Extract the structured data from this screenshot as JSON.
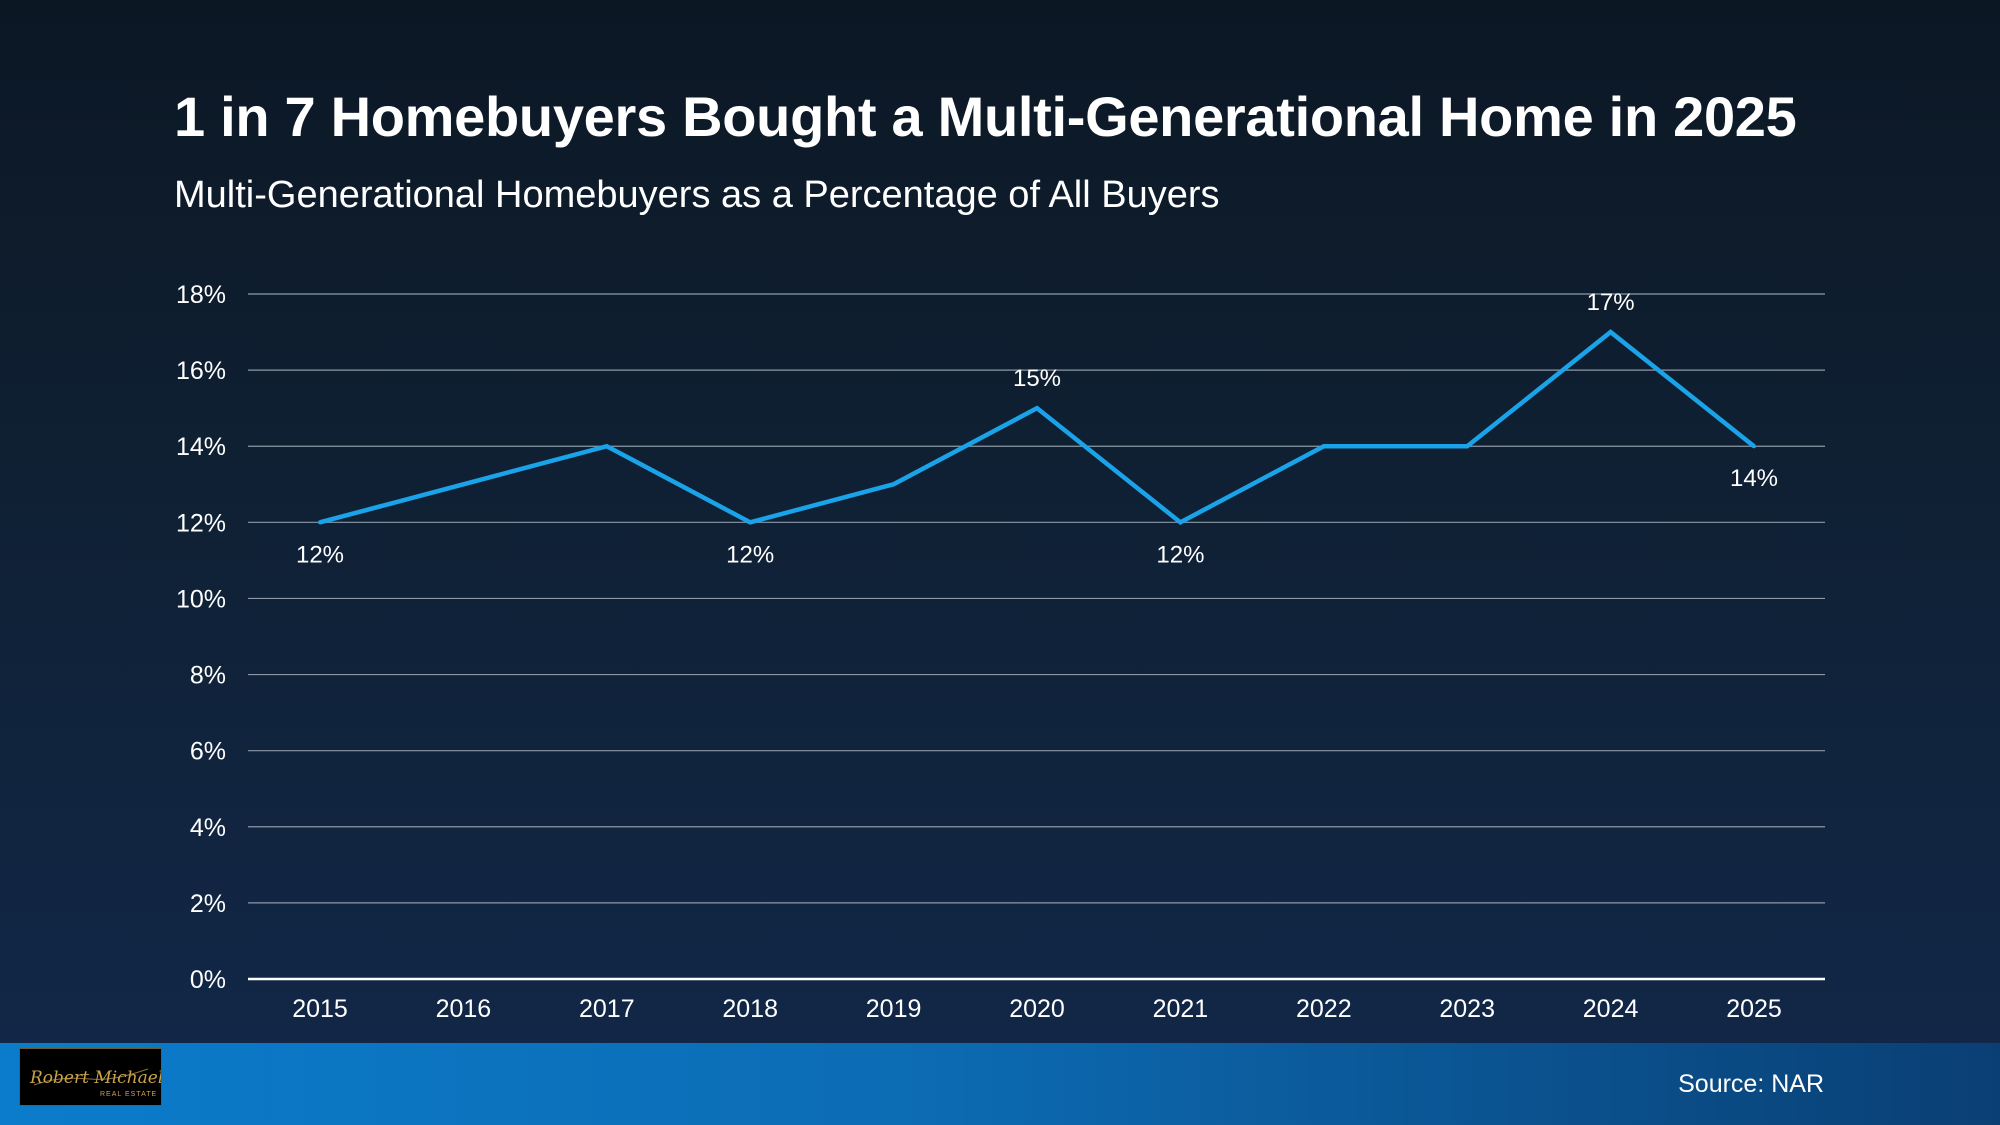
{
  "title": "1 in 7 Homebuyers Bought a Multi-Generational Home in 2025",
  "subtitle": "Multi-Generational Homebuyers as a Percentage of All Buyers",
  "source": "Source: NAR",
  "logo": {
    "name": "Robert Michael",
    "tagline": "REAL ESTATE"
  },
  "colors": {
    "line": "#1aa3e8",
    "grid": "#8c98a6",
    "baseline": "#ffffff",
    "text": "#ffffff",
    "logo_gold": "#c9a449"
  },
  "chart_data": {
    "type": "line",
    "title": "Multi-Generational Homebuyers as a Percentage of All Buyers",
    "xlabel": "",
    "ylabel": "",
    "categories": [
      "2015",
      "2016",
      "2017",
      "2018",
      "2019",
      "2020",
      "2021",
      "2022",
      "2023",
      "2024",
      "2025"
    ],
    "series": [
      {
        "name": "Multi-Generational Homebuyers",
        "values": [
          12,
          13,
          14,
          12,
          13,
          15,
          12,
          14,
          14,
          17,
          14
        ]
      }
    ],
    "ylim": [
      0,
      18
    ],
    "yticks": [
      0,
      2,
      4,
      6,
      8,
      10,
      12,
      14,
      16,
      18
    ],
    "ytick_labels": [
      "0%",
      "2%",
      "4%",
      "6%",
      "8%",
      "10%",
      "12%",
      "14%",
      "16%",
      "18%"
    ],
    "data_labels": [
      {
        "category": "2015",
        "text": "12%",
        "position": "below"
      },
      {
        "category": "2018",
        "text": "12%",
        "position": "below"
      },
      {
        "category": "2020",
        "text": "15%",
        "position": "above"
      },
      {
        "category": "2021",
        "text": "12%",
        "position": "below"
      },
      {
        "category": "2024",
        "text": "17%",
        "position": "above"
      },
      {
        "category": "2025",
        "text": "14%",
        "position": "below"
      }
    ],
    "grid": true,
    "legend": "none"
  }
}
